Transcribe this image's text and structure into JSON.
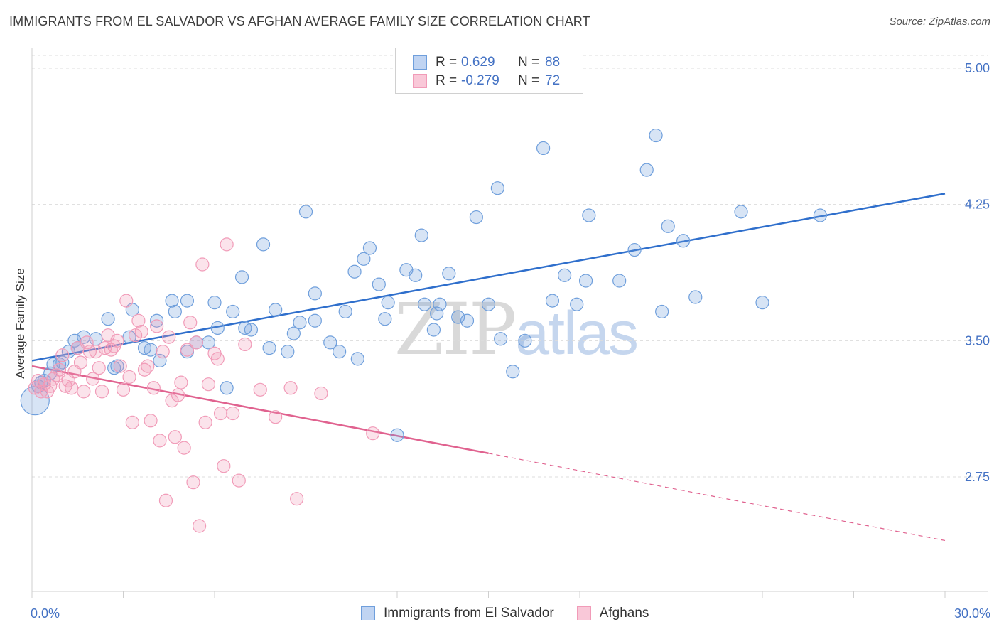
{
  "title": "IMMIGRANTS FROM EL SALVADOR VS AFGHAN AVERAGE FAMILY SIZE CORRELATION CHART",
  "source": "Source: ZipAtlas.com",
  "watermark": {
    "part1": "ZIP",
    "part2": "atlas"
  },
  "legend": {
    "rows": [
      {
        "r_label": "R =",
        "r_value": "0.629",
        "n_label": "N =",
        "n_value": "88"
      },
      {
        "r_label": "R =",
        "r_value": "-0.279",
        "n_label": "N =",
        "n_value": "72"
      }
    ]
  },
  "bottom_legend": [
    "Immigrants from El Salvador",
    "Afghans"
  ],
  "chart_data": {
    "type": "scatter",
    "title": "IMMIGRANTS FROM EL SALVADOR VS AFGHAN AVERAGE FAMILY SIZE CORRELATION CHART",
    "xlabel": "",
    "ylabel": "Average Family Size",
    "xlim": [
      0,
      30
    ],
    "ylim": [
      2.2,
      5.1
    ],
    "x_tick_labels": [
      "0.0%",
      "30.0%"
    ],
    "y_ticks": [
      2.75,
      3.5,
      4.25,
      5.0
    ],
    "y_tick_labels": [
      "2.75",
      "3.50",
      "4.25",
      "5.00"
    ],
    "grid": true,
    "legend_position": "top-center",
    "colors": {
      "series1": "#6f9fdc",
      "series2": "#f19bb8",
      "line1": "#2f6fcc",
      "line2": "#e0628f",
      "tick": "#4472c4"
    },
    "series": [
      {
        "name": "Immigrants from El Salvador",
        "color": "#6f9fdc",
        "trend": {
          "x0": 0,
          "y0": 3.39,
          "x1": 30,
          "y1": 4.31
        },
        "points": [
          [
            0.1,
            3.17
          ],
          [
            0.2,
            3.25
          ],
          [
            0.3,
            3.27
          ],
          [
            0.4,
            3.28
          ],
          [
            0.6,
            3.32
          ],
          [
            0.7,
            3.37
          ],
          [
            0.9,
            3.37
          ],
          [
            1.0,
            3.38
          ],
          [
            1.2,
            3.44
          ],
          [
            1.4,
            3.5
          ],
          [
            1.5,
            3.46
          ],
          [
            1.7,
            3.52
          ],
          [
            2.1,
            3.51
          ],
          [
            2.5,
            3.62
          ],
          [
            2.7,
            3.35
          ],
          [
            2.8,
            3.36
          ],
          [
            3.2,
            3.52
          ],
          [
            3.3,
            3.67
          ],
          [
            3.7,
            3.46
          ],
          [
            3.9,
            3.45
          ],
          [
            4.1,
            3.61
          ],
          [
            4.2,
            3.39
          ],
          [
            4.6,
            3.72
          ],
          [
            4.7,
            3.66
          ],
          [
            5.1,
            3.44
          ],
          [
            5.1,
            3.72
          ],
          [
            5.4,
            3.49
          ],
          [
            5.8,
            3.49
          ],
          [
            6.0,
            3.71
          ],
          [
            6.1,
            3.57
          ],
          [
            6.4,
            3.24
          ],
          [
            6.6,
            3.66
          ],
          [
            6.9,
            3.85
          ],
          [
            7.0,
            3.57
          ],
          [
            7.2,
            3.56
          ],
          [
            7.6,
            4.03
          ],
          [
            7.8,
            3.46
          ],
          [
            8.0,
            3.67
          ],
          [
            8.4,
            3.44
          ],
          [
            8.6,
            3.54
          ],
          [
            8.8,
            3.6
          ],
          [
            9.0,
            4.21
          ],
          [
            9.3,
            3.76
          ],
          [
            9.3,
            3.61
          ],
          [
            9.8,
            3.49
          ],
          [
            10.1,
            3.44
          ],
          [
            10.3,
            3.66
          ],
          [
            10.6,
            3.88
          ],
          [
            10.7,
            3.4
          ],
          [
            10.9,
            3.95
          ],
          [
            11.1,
            4.01
          ],
          [
            11.4,
            3.81
          ],
          [
            11.7,
            3.71
          ],
          [
            11.6,
            3.62
          ],
          [
            12.0,
            2.98
          ],
          [
            12.3,
            3.89
          ],
          [
            12.6,
            3.86
          ],
          [
            12.8,
            4.08
          ],
          [
            12.9,
            3.7
          ],
          [
            13.2,
            3.56
          ],
          [
            13.3,
            3.65
          ],
          [
            13.4,
            3.7
          ],
          [
            13.7,
            3.87
          ],
          [
            14.0,
            3.63
          ],
          [
            14.3,
            3.61
          ],
          [
            14.6,
            4.18
          ],
          [
            15.0,
            3.7
          ],
          [
            15.3,
            4.34
          ],
          [
            15.4,
            3.51
          ],
          [
            15.8,
            3.33
          ],
          [
            16.2,
            3.5
          ],
          [
            16.8,
            4.56
          ],
          [
            17.1,
            3.72
          ],
          [
            17.5,
            3.86
          ],
          [
            17.9,
            3.7
          ],
          [
            18.2,
            3.83
          ],
          [
            18.3,
            4.19
          ],
          [
            19.3,
            3.83
          ],
          [
            19.8,
            4.0
          ],
          [
            20.2,
            4.44
          ],
          [
            20.5,
            4.63
          ],
          [
            20.7,
            3.66
          ],
          [
            20.9,
            4.13
          ],
          [
            21.4,
            4.05
          ],
          [
            21.8,
            3.74
          ],
          [
            23.3,
            4.21
          ],
          [
            24.0,
            3.71
          ],
          [
            25.9,
            4.19
          ]
        ]
      },
      {
        "name": "Afghans",
        "color": "#f19bb8",
        "trend": {
          "x0": 0,
          "y0": 3.36,
          "x1": 15.0,
          "y1": 2.88,
          "dash_x1": 30,
          "dash_y1": 2.4
        },
        "points": [
          [
            0.1,
            3.24
          ],
          [
            0.2,
            3.28
          ],
          [
            0.3,
            3.22
          ],
          [
            0.4,
            3.26
          ],
          [
            0.5,
            3.22
          ],
          [
            0.6,
            3.25
          ],
          [
            0.7,
            3.29
          ],
          [
            0.8,
            3.31
          ],
          [
            0.9,
            3.34
          ],
          [
            1.0,
            3.42
          ],
          [
            1.1,
            3.25
          ],
          [
            1.2,
            3.28
          ],
          [
            1.3,
            3.24
          ],
          [
            1.4,
            3.33
          ],
          [
            1.5,
            3.46
          ],
          [
            1.6,
            3.38
          ],
          [
            1.7,
            3.22
          ],
          [
            1.8,
            3.49
          ],
          [
            1.9,
            3.44
          ],
          [
            2.0,
            3.29
          ],
          [
            2.1,
            3.44
          ],
          [
            2.2,
            3.35
          ],
          [
            2.3,
            3.22
          ],
          [
            2.4,
            3.46
          ],
          [
            2.5,
            3.53
          ],
          [
            2.6,
            3.45
          ],
          [
            2.7,
            3.47
          ],
          [
            2.8,
            3.5
          ],
          [
            2.9,
            3.36
          ],
          [
            3.0,
            3.23
          ],
          [
            3.1,
            3.72
          ],
          [
            3.2,
            3.3
          ],
          [
            3.3,
            3.05
          ],
          [
            3.4,
            3.53
          ],
          [
            3.5,
            3.61
          ],
          [
            3.6,
            3.55
          ],
          [
            3.7,
            3.34
          ],
          [
            3.8,
            3.36
          ],
          [
            3.9,
            3.06
          ],
          [
            4.0,
            3.24
          ],
          [
            4.1,
            3.58
          ],
          [
            4.2,
            2.95
          ],
          [
            4.3,
            3.44
          ],
          [
            4.4,
            2.62
          ],
          [
            4.5,
            3.52
          ],
          [
            4.6,
            3.17
          ],
          [
            4.7,
            2.97
          ],
          [
            4.8,
            3.2
          ],
          [
            4.9,
            3.27
          ],
          [
            5.0,
            2.91
          ],
          [
            5.1,
            3.45
          ],
          [
            5.2,
            3.6
          ],
          [
            5.3,
            2.72
          ],
          [
            5.4,
            3.49
          ],
          [
            5.5,
            2.48
          ],
          [
            5.6,
            3.92
          ],
          [
            5.7,
            3.05
          ],
          [
            5.8,
            3.26
          ],
          [
            6.0,
            3.43
          ],
          [
            6.1,
            3.4
          ],
          [
            6.2,
            3.1
          ],
          [
            6.3,
            2.81
          ],
          [
            6.4,
            4.03
          ],
          [
            6.6,
            3.1
          ],
          [
            6.8,
            2.73
          ],
          [
            7.0,
            3.48
          ],
          [
            7.5,
            3.23
          ],
          [
            8.0,
            3.08
          ],
          [
            8.5,
            3.24
          ],
          [
            8.7,
            2.63
          ],
          [
            9.5,
            3.21
          ],
          [
            11.2,
            2.99
          ]
        ]
      }
    ]
  }
}
